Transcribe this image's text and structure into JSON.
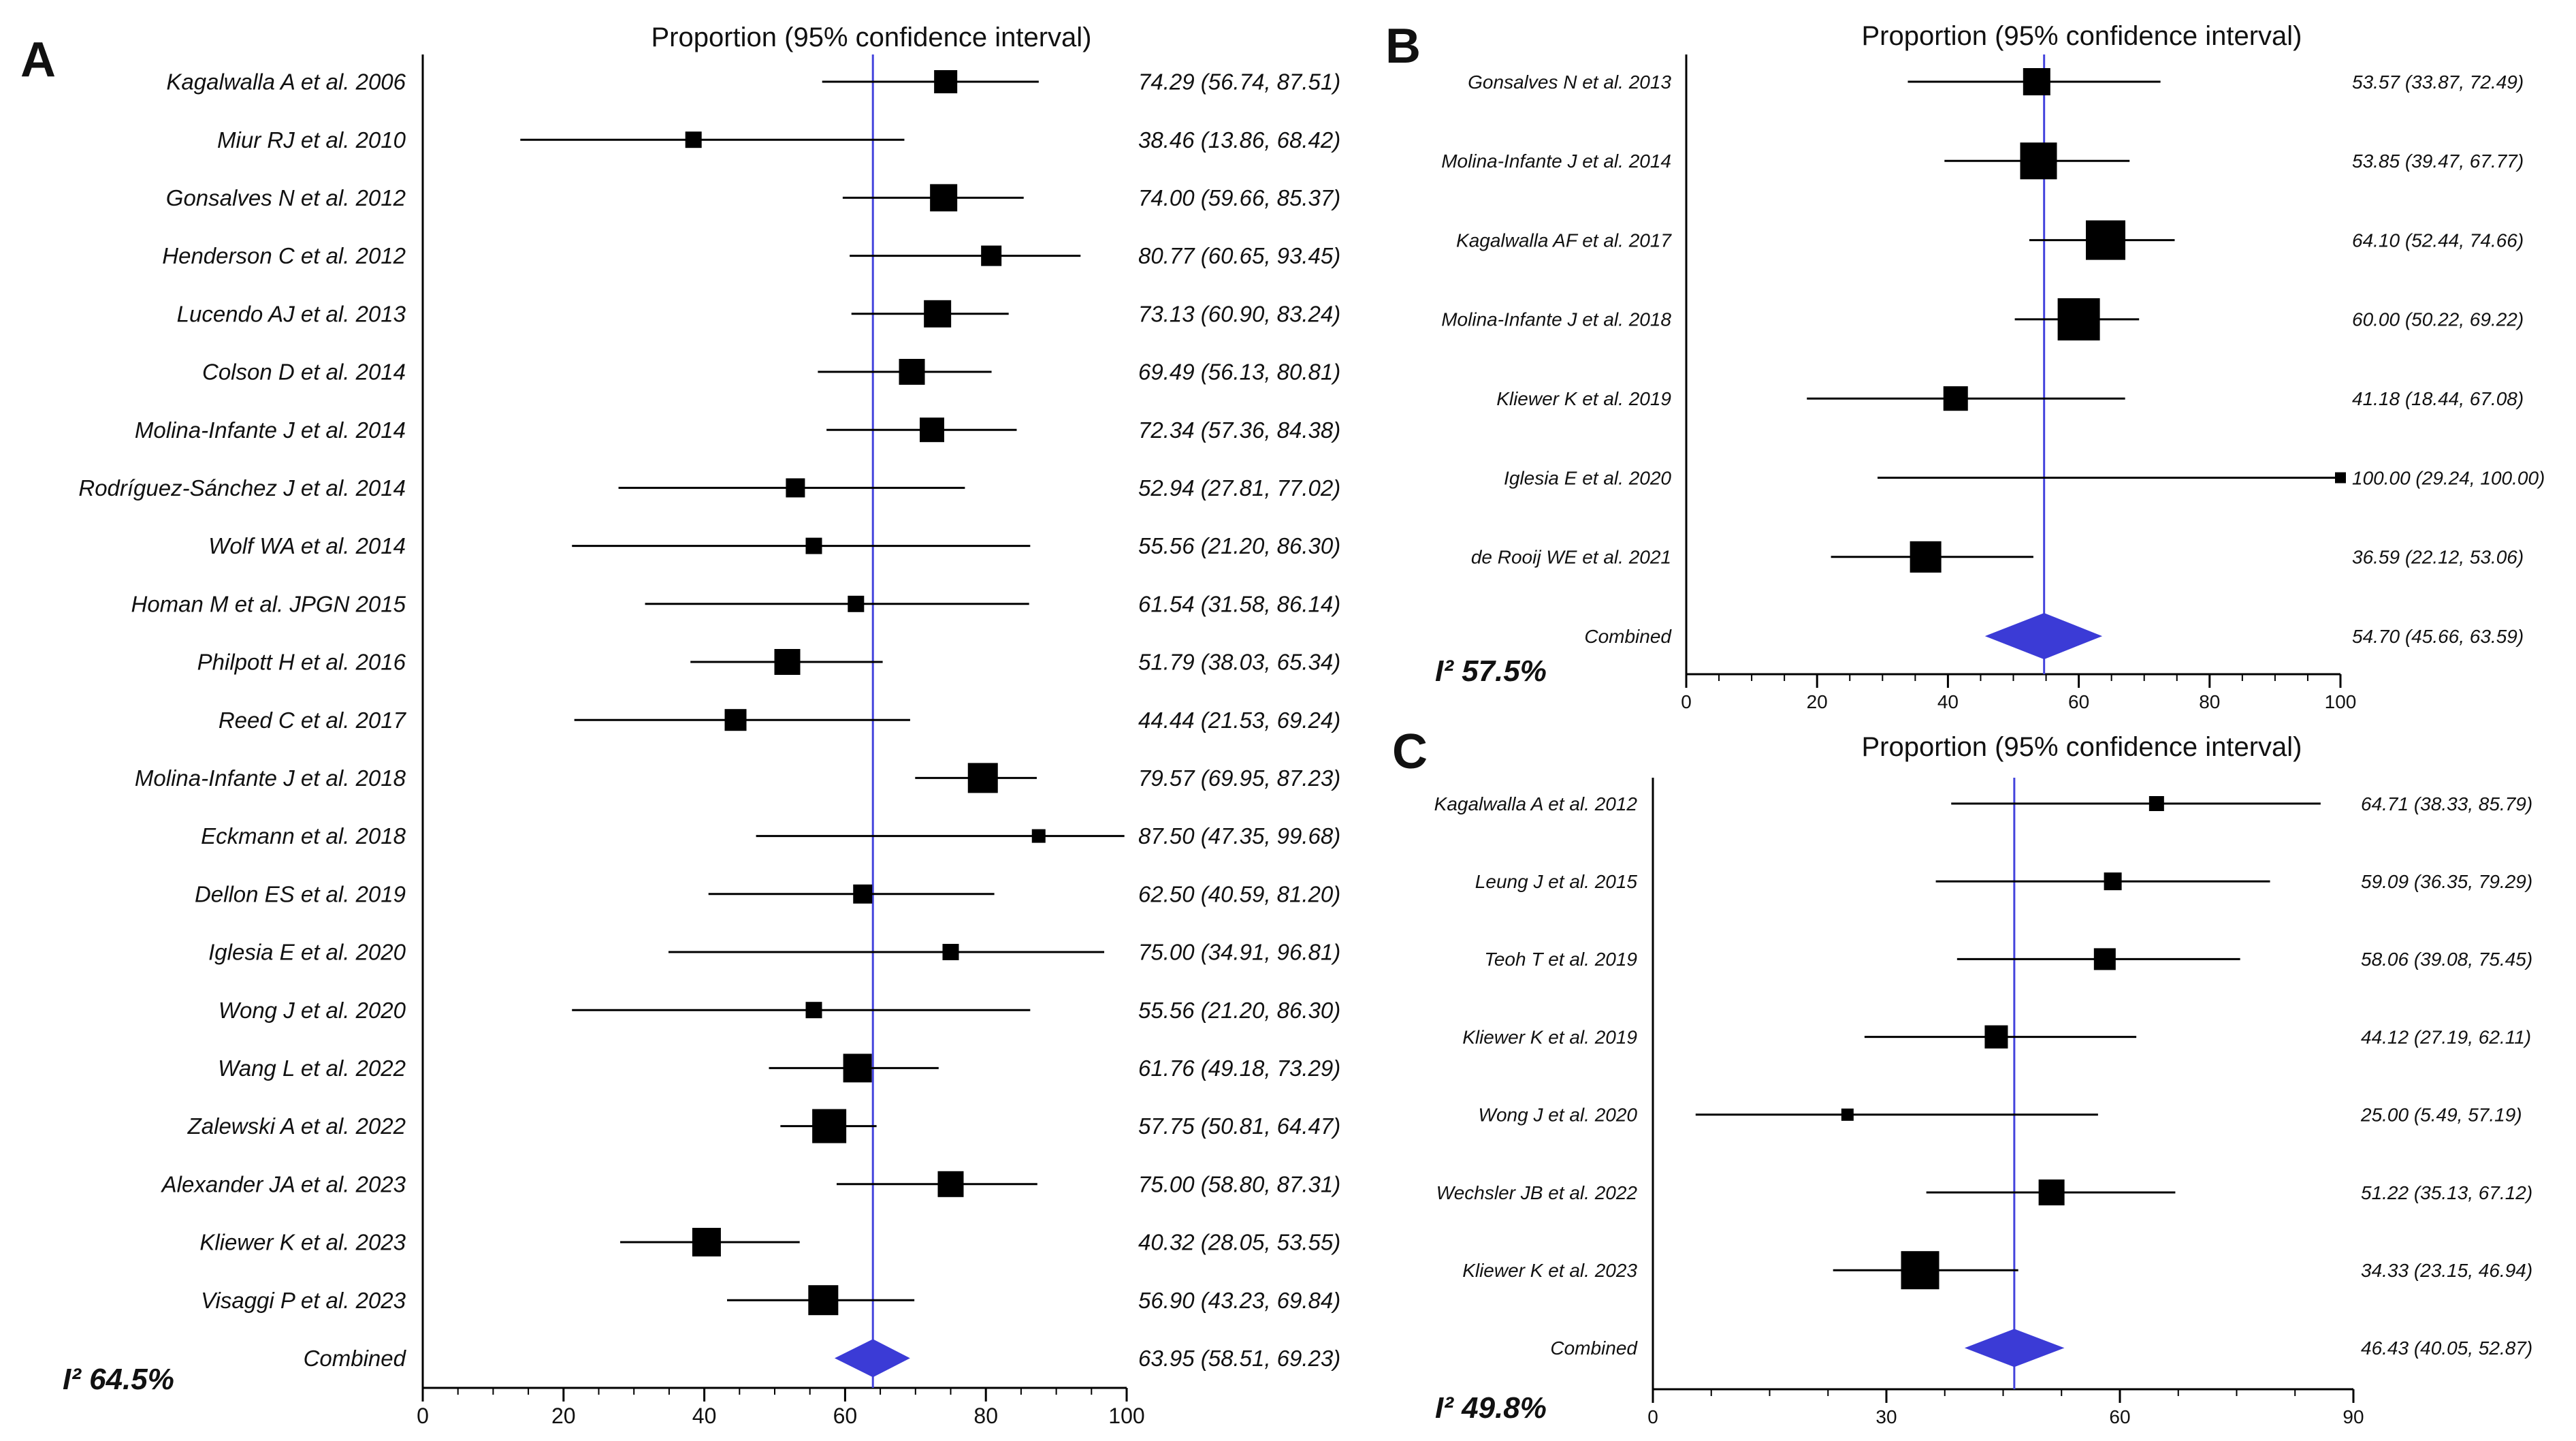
{
  "figure": {
    "heading_text": "Proportion (95% confidence interval)",
    "colors": {
      "point": "#000000",
      "ci_line": "#000000",
      "ref_line": "#4444dd",
      "diamond": "#3b3bd6"
    }
  },
  "chart_data": [
    {
      "type": "forest",
      "panel": "A",
      "heading": "Proportion (95% confidence interval)",
      "heterogeneity": "I² 64.5%",
      "xlim": [
        0,
        100
      ],
      "ticks": [
        0,
        20,
        40,
        60,
        80,
        100
      ],
      "tick_labels": [
        "0",
        "20",
        "40",
        "60",
        "80",
        "100"
      ],
      "pooled": 63.95,
      "studies": [
        {
          "label": "Kagalwalla A et al. 2006",
          "est": 74.29,
          "lo": 56.74,
          "hi": 87.51,
          "ci_text": "74.29 (56.74, 87.51)",
          "w": 34
        },
        {
          "label": "Miur RJ et al. 2010",
          "est": 38.46,
          "lo": 13.86,
          "hi": 68.42,
          "ci_text": "38.46 (13.86, 68.42)",
          "w": 24
        },
        {
          "label": "Gonsalves N et al. 2012",
          "est": 74.0,
          "lo": 59.66,
          "hi": 85.37,
          "ci_text": "74.00 (59.66, 85.37)",
          "w": 40
        },
        {
          "label": "Henderson C et al. 2012",
          "est": 80.77,
          "lo": 60.65,
          "hi": 93.45,
          "ci_text": "80.77 (60.65, 93.45)",
          "w": 30
        },
        {
          "label": "Lucendo AJ et al. 2013",
          "est": 73.13,
          "lo": 60.9,
          "hi": 83.24,
          "ci_text": "73.13 (60.90, 83.24)",
          "w": 40
        },
        {
          "label": "Colson D et al. 2014",
          "est": 69.49,
          "lo": 56.13,
          "hi": 80.81,
          "ci_text": "69.49 (56.13, 80.81)",
          "w": 38
        },
        {
          "label": "Molina-Infante J et al. 2014",
          "est": 72.34,
          "lo": 57.36,
          "hi": 84.38,
          "ci_text": "72.34 (57.36, 84.38)",
          "w": 36
        },
        {
          "label": "Rodríguez-Sánchez J et al. 2014",
          "est": 52.94,
          "lo": 27.81,
          "hi": 77.02,
          "ci_text": "52.94 (27.81, 77.02)",
          "w": 28
        },
        {
          "label": "Wolf WA et al. 2014",
          "est": 55.56,
          "lo": 21.2,
          "hi": 86.3,
          "ci_text": "55.56 (21.20, 86.30)",
          "w": 24
        },
        {
          "label": "Homan M et al. JPGN 2015",
          "est": 61.54,
          "lo": 31.58,
          "hi": 86.14,
          "ci_text": "61.54 (31.58, 86.14)",
          "w": 24
        },
        {
          "label": "Philpott H et al. 2016",
          "est": 51.79,
          "lo": 38.03,
          "hi": 65.34,
          "ci_text": "51.79 (38.03, 65.34)",
          "w": 38
        },
        {
          "label": "Reed C et al. 2017",
          "est": 44.44,
          "lo": 21.53,
          "hi": 69.24,
          "ci_text": "44.44 (21.53, 69.24)",
          "w": 32
        },
        {
          "label": "Molina-Infante J et al. 2018",
          "est": 79.57,
          "lo": 69.95,
          "hi": 87.23,
          "ci_text": "79.57 (69.95, 87.23)",
          "w": 44
        },
        {
          "label": "Eckmann et al. 2018",
          "est": 87.5,
          "lo": 47.35,
          "hi": 99.68,
          "ci_text": "87.50 (47.35, 99.68)",
          "w": 20
        },
        {
          "label": "Dellon ES et al. 2019",
          "est": 62.5,
          "lo": 40.59,
          "hi": 81.2,
          "ci_text": "62.50 (40.59, 81.20)",
          "w": 28
        },
        {
          "label": "Iglesia E et al. 2020",
          "est": 75.0,
          "lo": 34.91,
          "hi": 96.81,
          "ci_text": "75.00 (34.91, 96.81)",
          "w": 24
        },
        {
          "label": "Wong J et al. 2020",
          "est": 55.56,
          "lo": 21.2,
          "hi": 86.3,
          "ci_text": "55.56 (21.20, 86.30)",
          "w": 24
        },
        {
          "label": "Wang L et al. 2022",
          "est": 61.76,
          "lo": 49.18,
          "hi": 73.29,
          "ci_text": "61.76 (49.18, 73.29)",
          "w": 42
        },
        {
          "label": "Zalewski A et al. 2022",
          "est": 57.75,
          "lo": 50.81,
          "hi": 64.47,
          "ci_text": "57.75 (50.81, 64.47)",
          "w": 50
        },
        {
          "label": "Alexander JA et al. 2023",
          "est": 75.0,
          "lo": 58.8,
          "hi": 87.31,
          "ci_text": "75.00 (58.80, 87.31)",
          "w": 38
        },
        {
          "label": "Kliewer K et al. 2023",
          "est": 40.32,
          "lo": 28.05,
          "hi": 53.55,
          "ci_text": "40.32 (28.05, 53.55)",
          "w": 42
        },
        {
          "label": "Visaggi P et al. 2023",
          "est": 56.9,
          "lo": 43.23,
          "hi": 69.84,
          "ci_text": "56.90 (43.23, 69.84)",
          "w": 44
        }
      ],
      "combined": {
        "label": "Combined",
        "est": 63.95,
        "lo": 58.51,
        "hi": 69.23,
        "ci_text": "63.95 (58.51, 69.23)"
      }
    },
    {
      "type": "forest",
      "panel": "B",
      "heading": "Proportion (95% confidence interval)",
      "heterogeneity": "I² 57.5%",
      "xlim": [
        0,
        100
      ],
      "ticks": [
        0,
        20,
        40,
        60,
        80,
        100
      ],
      "tick_labels": [
        "0",
        "20",
        "40",
        "60",
        "80",
        "100"
      ],
      "pooled": 54.7,
      "studies": [
        {
          "label": "Gonsalves N et al. 2013",
          "est": 53.57,
          "lo": 33.87,
          "hi": 72.49,
          "ci_text": "53.57 (33.87, 72.49)",
          "w": 40
        },
        {
          "label": "Molina-Infante J et al. 2014",
          "est": 53.85,
          "lo": 39.47,
          "hi": 67.77,
          "ci_text": "53.85 (39.47, 67.77)",
          "w": 54
        },
        {
          "label": "Kagalwalla AF et al. 2017",
          "est": 64.1,
          "lo": 52.44,
          "hi": 74.66,
          "ci_text": "64.10 (52.44, 74.66)",
          "w": 58
        },
        {
          "label": "Molina-Infante J et al. 2018",
          "est": 60.0,
          "lo": 50.22,
          "hi": 69.22,
          "ci_text": "60.00 (50.22, 69.22)",
          "w": 62
        },
        {
          "label": "Kliewer K et al. 2019",
          "est": 41.18,
          "lo": 18.44,
          "hi": 67.08,
          "ci_text": "41.18 (18.44, 67.08)",
          "w": 36
        },
        {
          "label": "Iglesia E et al. 2020",
          "est": 100.0,
          "lo": 29.24,
          "hi": 100.0,
          "ci_text": "100.00 (29.24, 100.00)",
          "w": 16
        },
        {
          "label": "de Rooij WE et al. 2021",
          "est": 36.59,
          "lo": 22.12,
          "hi": 53.06,
          "ci_text": "36.59 (22.12, 53.06)",
          "w": 46
        }
      ],
      "combined": {
        "label": "Combined",
        "est": 54.7,
        "lo": 45.66,
        "hi": 63.59,
        "ci_text": "54.70 (45.66, 63.59)"
      }
    },
    {
      "type": "forest",
      "panel": "C",
      "heading": "Proportion (95% confidence interval)",
      "heterogeneity": "I² 49.8%",
      "xlim": [
        0,
        90
      ],
      "ticks": [
        0,
        30,
        60,
        90
      ],
      "tick_labels": [
        "0",
        "30",
        "60",
        "90"
      ],
      "pooled": 46.43,
      "studies": [
        {
          "label": "Kagalwalla A et al. 2012",
          "est": 64.71,
          "lo": 38.33,
          "hi": 85.79,
          "ci_text": "64.71 (38.33, 85.79)",
          "w": 22
        },
        {
          "label": "Leung J et al. 2015",
          "est": 59.09,
          "lo": 36.35,
          "hi": 79.29,
          "ci_text": "59.09 (36.35, 79.29)",
          "w": 26
        },
        {
          "label": "Teoh T et al. 2019",
          "est": 58.06,
          "lo": 39.08,
          "hi": 75.45,
          "ci_text": "58.06 (39.08, 75.45)",
          "w": 32
        },
        {
          "label": "Kliewer K et al. 2019",
          "est": 44.12,
          "lo": 27.19,
          "hi": 62.11,
          "ci_text": "44.12 (27.19, 62.11)",
          "w": 34
        },
        {
          "label": "Wong J et al. 2020",
          "est": 25.0,
          "lo": 5.49,
          "hi": 57.19,
          "ci_text": "25.00 (5.49, 57.19)",
          "w": 18
        },
        {
          "label": "Wechsler JB et al. 2022",
          "est": 51.22,
          "lo": 35.13,
          "hi": 67.12,
          "ci_text": "51.22 (35.13, 67.12)",
          "w": 38
        },
        {
          "label": "Kliewer K et al. 2023",
          "est": 34.33,
          "lo": 23.15,
          "hi": 46.94,
          "ci_text": "34.33 (23.15, 46.94)",
          "w": 56
        }
      ],
      "combined": {
        "label": "Combined",
        "est": 46.43,
        "lo": 40.05,
        "hi": 52.87,
        "ci_text": "46.43 (40.05, 52.87)"
      }
    }
  ]
}
